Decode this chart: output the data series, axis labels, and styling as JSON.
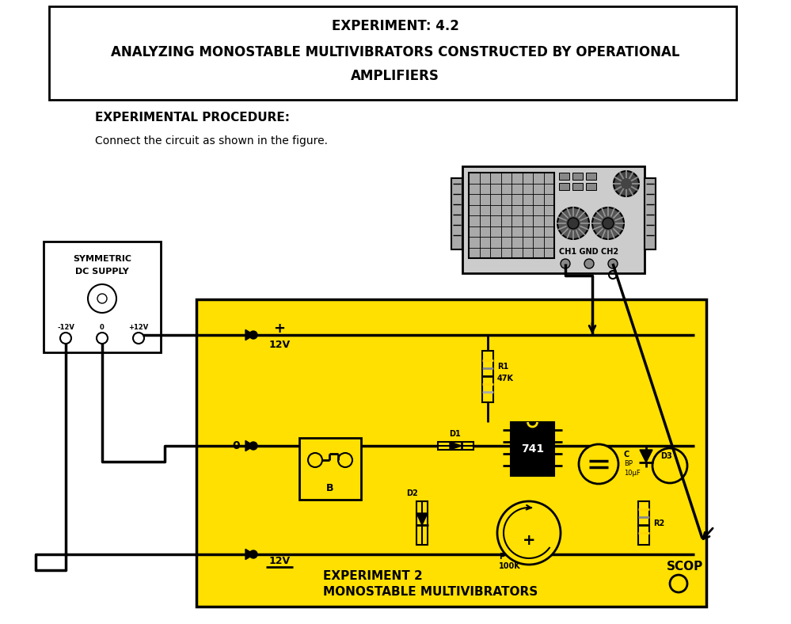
{
  "title_line1": "EXPERIMENT: 4.2",
  "title_line2": "ANALYZING MONOSTABLE MULTIVIBRATORS CONSTRUCTED BY OPERATIONAL",
  "title_line3": "AMPLIFIERS",
  "section_title": "EXPERIMENTAL PROCEDURE:",
  "instruction": "Connect the circuit as shown in the figure.",
  "bg_color": "#ffffff",
  "yellow_color": "#FFE000",
  "board_label1": "EXPERIMENT 2",
  "board_label2": "MONOSTABLE MULTIVIBRATORS",
  "supply_label1": "SYMMETRIC",
  "supply_label2": "DC SUPPLY",
  "component_741": "741",
  "component_R1": "R1",
  "component_R1b": "47K",
  "component_R2": "R2",
  "component_D1": "D1",
  "component_D2": "D2",
  "component_D3": "D3",
  "component_C": "C",
  "component_CBP": "BP",
  "component_CuF": "10μF",
  "component_P": "P",
  "component_P100K": "100K",
  "component_B": "B",
  "scop_label": "SCOP",
  "ch_labels": "CH1 GND CH2",
  "plus12_label": "+",
  "v12_label": "12V",
  "zero_label": "0",
  "minus12_label": "12V",
  "sup_minus": "-12V",
  "sup_zero": "0",
  "sup_plus": "+12V"
}
